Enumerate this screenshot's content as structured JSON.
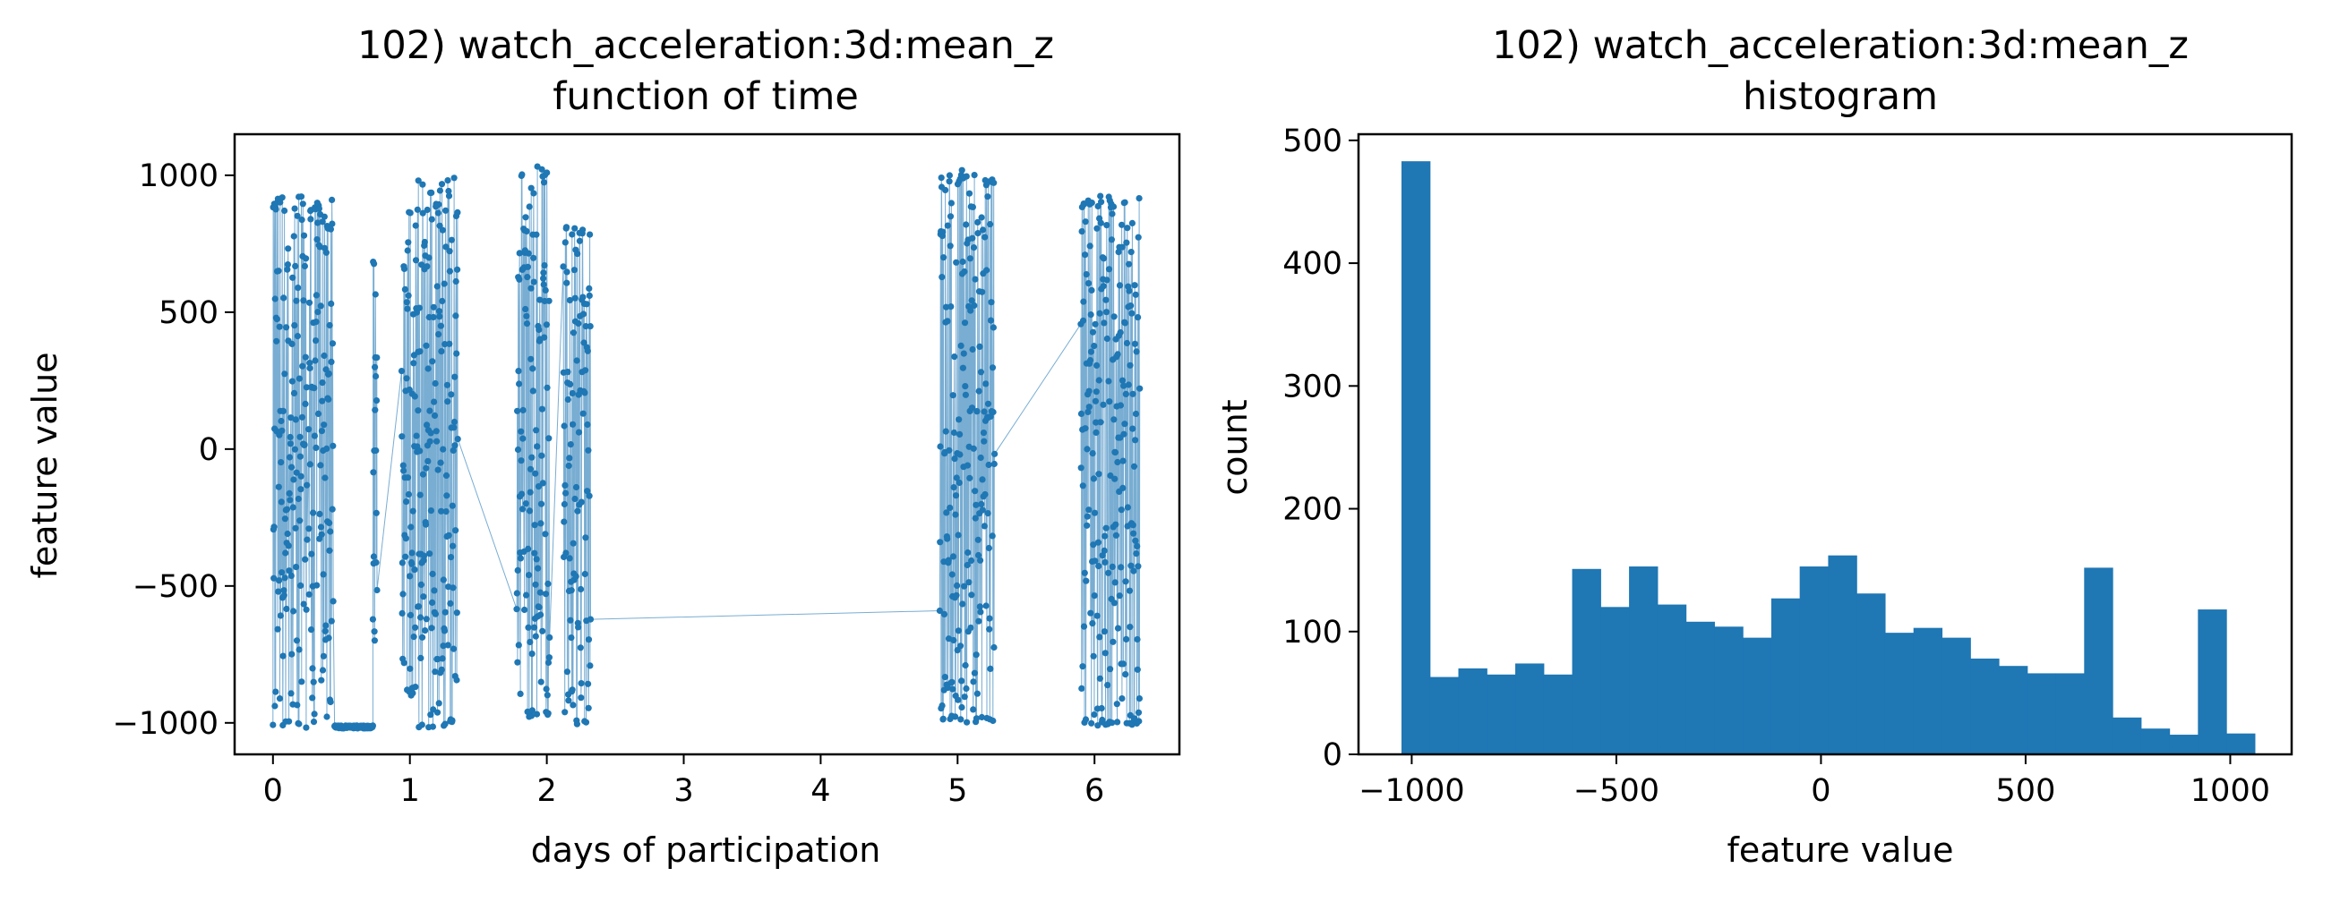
{
  "chart_data": [
    {
      "type": "line",
      "title": "102) watch_acceleration:3d:mean_z",
      "subtitle": "function of time",
      "xlabel": "days of participation",
      "ylabel": "feature value",
      "xlim": [
        -0.28,
        6.62
      ],
      "ylim": [
        -1115,
        1150
      ],
      "xticks": [
        0,
        1,
        2,
        3,
        4,
        5,
        6
      ],
      "yticks": [
        -1000,
        -500,
        0,
        500,
        1000
      ],
      "ytick_labels": [
        "−1000",
        "−500",
        "0",
        "500",
        "1000"
      ],
      "color": "#1f77b4",
      "marker": "dot",
      "grid": false,
      "bursts": [
        {
          "start": 0.0,
          "end": 0.25,
          "ymin": -1020,
          "ymax": 930
        },
        {
          "start": 0.26,
          "end": 0.44,
          "ymin": -1020,
          "ymax": 920
        },
        {
          "start": 0.45,
          "end": 0.73,
          "ymin": -1020,
          "ymax": -1010
        },
        {
          "start": 0.73,
          "end": 0.76,
          "ymin": -820,
          "ymax": 720
        },
        {
          "start": 0.94,
          "end": 1.06,
          "ymin": -900,
          "ymax": 910
        },
        {
          "start": 1.06,
          "end": 1.35,
          "ymin": -1020,
          "ymax": 1000
        },
        {
          "start": 1.78,
          "end": 2.02,
          "ymin": -980,
          "ymax": 1050
        },
        {
          "start": 2.12,
          "end": 2.32,
          "ymin": -1010,
          "ymax": 820
        },
        {
          "start": 4.87,
          "end": 5.27,
          "ymin": -1000,
          "ymax": 1020
        },
        {
          "start": 5.9,
          "end": 6.33,
          "ymin": -1010,
          "ymax": 930
        }
      ]
    },
    {
      "type": "bar",
      "title": "102) watch_acceleration:3d:mean_z",
      "subtitle": "histogram",
      "xlabel": "feature value",
      "ylabel": "count",
      "xlim": [
        -1130,
        1150
      ],
      "ylim": [
        0,
        505
      ],
      "xticks": [
        -1000,
        -500,
        0,
        500,
        1000
      ],
      "xtick_labels": [
        "−1000",
        "−500",
        "0",
        "500",
        "1000"
      ],
      "yticks": [
        0,
        100,
        200,
        300,
        400,
        500
      ],
      "color": "#1f77b4",
      "grid": false,
      "bin_start": -1025,
      "bin_width": 69.5,
      "values": [
        483,
        63,
        70,
        65,
        74,
        65,
        151,
        120,
        153,
        122,
        108,
        104,
        95,
        127,
        153,
        162,
        131,
        99,
        103,
        95,
        78,
        72,
        66,
        66,
        152,
        30,
        21,
        16,
        118,
        17
      ]
    }
  ]
}
